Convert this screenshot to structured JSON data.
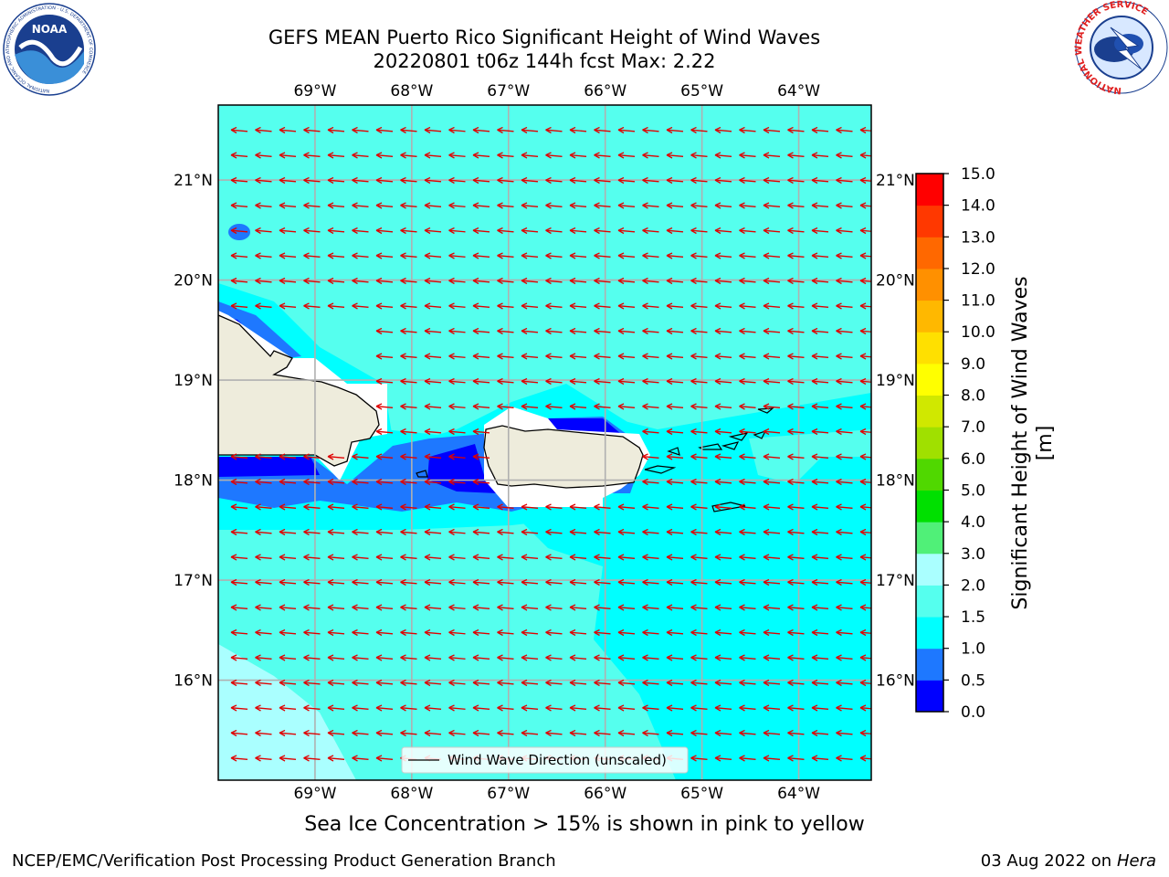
{
  "title": {
    "line1": "GEFS MEAN Puerto Rico Significant Height of Wind Waves",
    "line2": "20220801 t06z 144h fcst   Max: 2.22"
  },
  "logos": {
    "noaa": {
      "text": "NOAA",
      "ring_text": "NATIONAL OCEANIC AND ATMOSPHERIC ADMINISTRATION · U.S. DEPARTMENT OF COMMERCE"
    },
    "nws": {
      "ring_text": "NATIONAL WEATHER SERVICE"
    }
  },
  "map": {
    "lon_range": [
      -70.0,
      -63.25
    ],
    "lat_range": [
      15.0,
      21.75
    ],
    "lon_ticks": [
      {
        "value": -69,
        "label": "69°W"
      },
      {
        "value": -68,
        "label": "68°W"
      },
      {
        "value": -67,
        "label": "67°W"
      },
      {
        "value": -66,
        "label": "66°W"
      },
      {
        "value": -65,
        "label": "65°W"
      },
      {
        "value": -64,
        "label": "64°W"
      }
    ],
    "lat_ticks": [
      {
        "value": 21,
        "label": "21°N"
      },
      {
        "value": 20,
        "label": "20°N"
      },
      {
        "value": 19,
        "label": "19°N"
      },
      {
        "value": 18,
        "label": "18°N"
      },
      {
        "value": 17,
        "label": "17°N"
      },
      {
        "value": 16,
        "label": "16°N"
      }
    ],
    "grid": true,
    "legend": {
      "label": "Wind Wave Direction (unscaled)",
      "placement": "bottom-center"
    },
    "arrow_color": "#e00000",
    "dominant_wave_direction": "toward west",
    "coastline_color": "#000000",
    "land_color": "#eeecdc"
  },
  "colorbar": {
    "label": "Significant Height of Wind Waves [m]",
    "levels": [
      0.0,
      0.5,
      1.0,
      1.5,
      2.0,
      3.0,
      4.0,
      5.0,
      6.0,
      7.0,
      8.0,
      9.0,
      10.0,
      11.0,
      12.0,
      13.0,
      14.0,
      15.0
    ],
    "tick_labels": [
      "0.0",
      "0.5",
      "1.0",
      "1.5",
      "2.0",
      "3.0",
      "4.0",
      "5.0",
      "6.0",
      "7.0",
      "8.0",
      "9.0",
      "10.0",
      "11.0",
      "12.0",
      "13.0",
      "14.0",
      "15.0"
    ],
    "colors": [
      "#0000ff",
      "#1e78ff",
      "#00ffff",
      "#55ffee",
      "#aaffff",
      "#50f078",
      "#00e000",
      "#50d800",
      "#a0e000",
      "#d0e800",
      "#ffff00",
      "#ffe000",
      "#ffb800",
      "#ff9000",
      "#ff6800",
      "#ff3800",
      "#ff0000"
    ]
  },
  "ice_note": "Sea Ice Concentration > 15% is shown in pink to yellow",
  "footer": {
    "left": "NCEP/EMC/Verification Post Processing Product Generation Branch",
    "right_date": "03 Aug 2022 on",
    "right_host": "Hera"
  }
}
